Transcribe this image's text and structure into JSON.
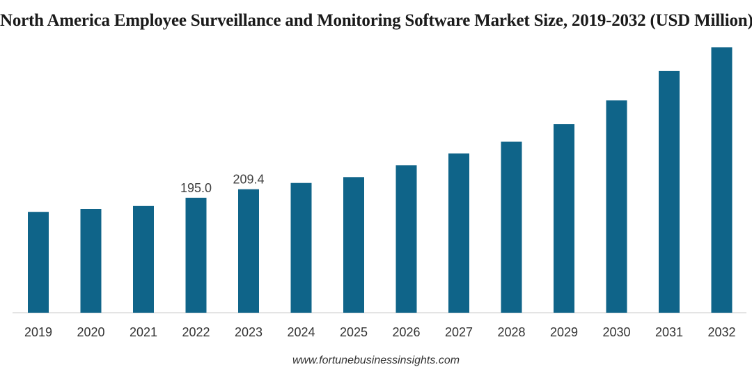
{
  "chart_data": {
    "type": "bar",
    "title": "North America Employee Surveillance and Monitoring Software Market Size, 2019-2032 (USD Million)",
    "xlabel": "",
    "ylabel": "",
    "categories": [
      "2019",
      "2020",
      "2021",
      "2022",
      "2023",
      "2024",
      "2025",
      "2026",
      "2027",
      "2028",
      "2029",
      "2030",
      "2031",
      "2032"
    ],
    "values": [
      171,
      176,
      181,
      195.0,
      209.4,
      220,
      230,
      250,
      270,
      290,
      320,
      360,
      410,
      450
    ],
    "data_labels": [
      null,
      null,
      null,
      "195.0",
      "209.4",
      null,
      null,
      null,
      null,
      null,
      null,
      null,
      null,
      null
    ],
    "ylim": [
      0,
      450
    ],
    "grid": false,
    "legend": "none",
    "bar_color": "#0f6489",
    "axis_color": "#c8c8c8"
  },
  "source": "www.fortunebusinessinsights.com"
}
